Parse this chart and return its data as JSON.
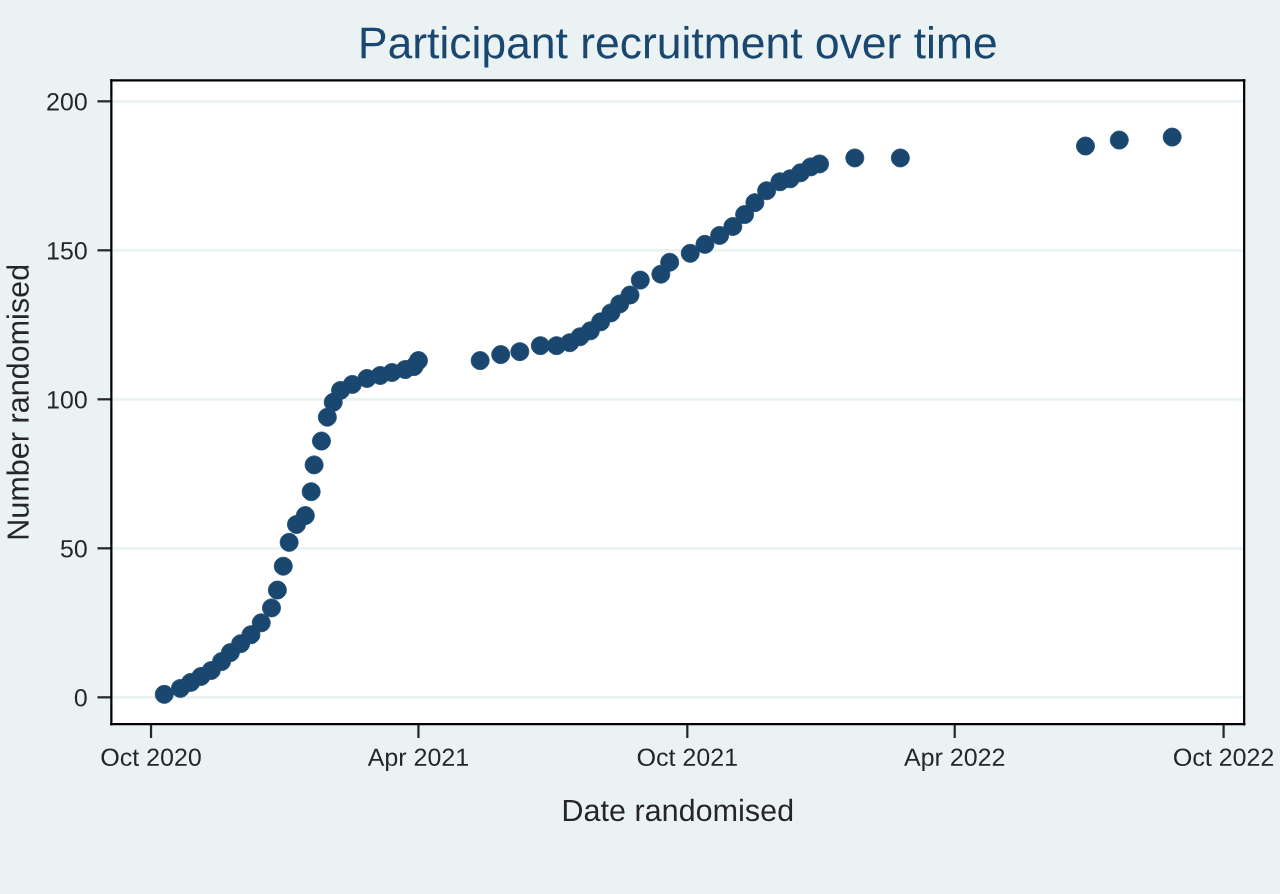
{
  "chart_data": {
    "type": "scatter",
    "title": "Participant recruitment over time",
    "xlabel": "Date randomised",
    "ylabel": "Number randomised",
    "x": [
      "2020-10-10",
      "2020-10-21",
      "2020-10-28",
      "2020-11-04",
      "2020-11-11",
      "2020-11-18",
      "2020-11-24",
      "2020-12-01",
      "2020-12-08",
      "2020-12-15",
      "2020-12-22",
      "2020-12-26",
      "2020-12-30",
      "2021-01-03",
      "2021-01-08",
      "2021-01-14",
      "2021-01-18",
      "2021-01-20",
      "2021-01-25",
      "2021-01-29",
      "2021-02-02",
      "2021-02-07",
      "2021-02-15",
      "2021-02-25",
      "2021-03-06",
      "2021-03-14",
      "2021-03-23",
      "2021-03-29",
      "2021-04-01",
      "2021-05-13",
      "2021-05-27",
      "2021-06-09",
      "2021-06-23",
      "2021-07-04",
      "2021-07-13",
      "2021-07-20",
      "2021-07-27",
      "2021-08-03",
      "2021-08-10",
      "2021-08-16",
      "2021-08-23",
      "2021-08-30",
      "2021-09-13",
      "2021-09-19",
      "2021-10-03",
      "2021-10-13",
      "2021-10-23",
      "2021-11-01",
      "2021-11-09",
      "2021-11-16",
      "2021-11-24",
      "2021-12-03",
      "2021-12-10",
      "2021-12-17",
      "2021-12-24",
      "2021-12-30",
      "2022-01-23",
      "2022-02-23",
      "2022-06-29",
      "2022-07-22",
      "2022-08-27"
    ],
    "series": [
      {
        "color": "#1a476f",
        "values": [
          1,
          3,
          5,
          7,
          9,
          12,
          15,
          18,
          21,
          25,
          30,
          36,
          44,
          52,
          58,
          61,
          69,
          78,
          86,
          94,
          99,
          103,
          105,
          107,
          108,
          109,
          110,
          111,
          113,
          113,
          115,
          116,
          118,
          118,
          119,
          121,
          123,
          126,
          129,
          132,
          135,
          140,
          142,
          146,
          149,
          152,
          155,
          158,
          162,
          166,
          170,
          173,
          174,
          176,
          178,
          179,
          181,
          181,
          185,
          187,
          188
        ]
      }
    ],
    "xlim": [
      "2020-09-04",
      "2022-10-15"
    ],
    "ylim": [
      -9,
      207
    ],
    "xticks": [
      {
        "value": "2020-10-01",
        "label": "Oct 2020"
      },
      {
        "value": "2021-04-01",
        "label": "Apr 2021"
      },
      {
        "value": "2021-10-01",
        "label": "Oct 2021"
      },
      {
        "value": "2022-04-01",
        "label": "Apr 2022"
      },
      {
        "value": "2022-10-01",
        "label": "Oct 2022"
      }
    ],
    "yticks": [
      0,
      50,
      100,
      150,
      200
    ],
    "grid": "y",
    "marker": "circle"
  }
}
